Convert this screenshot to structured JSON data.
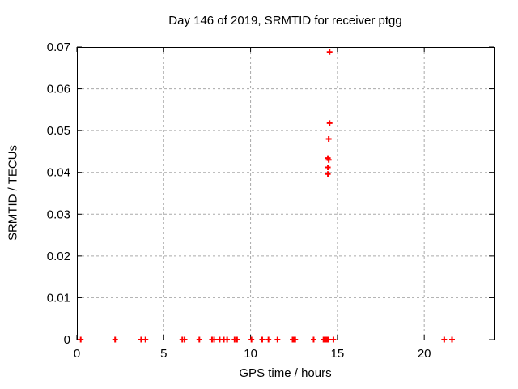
{
  "window": {
    "background": "#ffffff"
  },
  "chart_data": {
    "type": "scatter",
    "title": "Day 146 of 2019, SRMTID for receiver ptgg",
    "xlabel": "GPS time / hours",
    "ylabel": "SRMTID / TECUs",
    "xlim": [
      0,
      24
    ],
    "ylim": [
      0,
      0.07
    ],
    "x_ticks": [
      0,
      5,
      10,
      15,
      20
    ],
    "y_ticks": [
      0,
      0.01,
      0.02,
      0.03,
      0.04,
      0.05,
      0.06,
      0.07
    ],
    "grid": true,
    "grid_style": "dashed",
    "legend": "none",
    "marker": "plus",
    "marker_color": "#ff0000",
    "grid_color": "#aaaaaa",
    "axis_color": "#000000",
    "series": [
      {
        "name": "SRMTID",
        "points": [
          [
            0.22,
            0
          ],
          [
            2.2,
            0
          ],
          [
            3.7,
            0
          ],
          [
            3.95,
            0
          ],
          [
            6.07,
            0
          ],
          [
            6.2,
            0
          ],
          [
            7.05,
            0
          ],
          [
            7.78,
            0
          ],
          [
            7.9,
            0
          ],
          [
            8.22,
            0
          ],
          [
            8.46,
            0
          ],
          [
            8.65,
            0
          ],
          [
            9.08,
            0
          ],
          [
            9.22,
            0
          ],
          [
            10.05,
            0
          ],
          [
            10.67,
            0
          ],
          [
            11.03,
            0
          ],
          [
            11.55,
            0
          ],
          [
            12.42,
            0
          ],
          [
            12.47,
            0
          ],
          [
            12.52,
            0
          ],
          [
            12.57,
            0
          ],
          [
            13.63,
            0
          ],
          [
            14.2,
            0
          ],
          [
            14.27,
            0
          ],
          [
            14.33,
            0
          ],
          [
            14.4,
            0
          ],
          [
            14.47,
            0
          ],
          [
            14.77,
            0
          ],
          [
            21.15,
            0
          ],
          [
            21.6,
            0
          ],
          [
            14.55,
            0.0688
          ],
          [
            14.55,
            0.0518
          ],
          [
            14.5,
            0.048
          ],
          [
            14.45,
            0.0434
          ],
          [
            14.5,
            0.043
          ],
          [
            14.45,
            0.0412
          ],
          [
            14.45,
            0.0396
          ]
        ]
      }
    ]
  }
}
